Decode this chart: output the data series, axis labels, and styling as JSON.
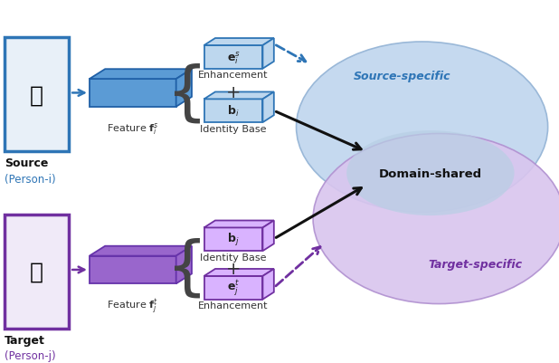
{
  "fig_width": 6.18,
  "fig_height": 4.02,
  "bg_color": "#ffffff",
  "source_feat_color": "#5b9bd5",
  "source_feat_edge": "#1f5fa6",
  "source_enhance_color": "#bdd7ee",
  "source_enhance_edge": "#2e75b6",
  "source_base_color": "#bdd7ee",
  "source_base_edge": "#2e75b6",
  "target_feat_color": "#9966cc",
  "target_feat_edge": "#6633aa",
  "target_enhance_color": "#d9b3ff",
  "target_enhance_edge": "#7030a0",
  "target_base_color": "#d9b3ff",
  "target_base_edge": "#7030a0",
  "source_img_edge": "#2e75b6",
  "target_img_edge": "#7030a0",
  "source_ellipse_color": "#c5d9ef",
  "target_ellipse_color": "#d9c5ee",
  "overlap_ellipse_color": "#b8cfe4",
  "arrow_source_color": "#2e75b6",
  "arrow_target_color": "#7030a0",
  "arrow_shared_color": "#111111",
  "feature_s_label": "Feature $\\mathbf{f}_i^s$",
  "feature_t_label": "Feature $\\mathbf{f}_j^t$",
  "enhance_s_label": "$\\mathbf{e}_i^s$",
  "enhance_t_label": "$\\mathbf{e}_j^t$",
  "base_s_label": "$\\mathbf{b}_i$",
  "base_t_label": "$\\mathbf{b}_j$",
  "enhance_caption": "Enhancement",
  "base_caption": "Identity Base",
  "domain_shared_label": "Domain-shared",
  "source_specific_label": "Source-specific",
  "target_specific_label": "Target-specific",
  "source_name": "Source",
  "source_sub": "(Person-i)",
  "target_name": "Target",
  "target_sub": "(Person-j)",
  "plus_symbol": "+"
}
